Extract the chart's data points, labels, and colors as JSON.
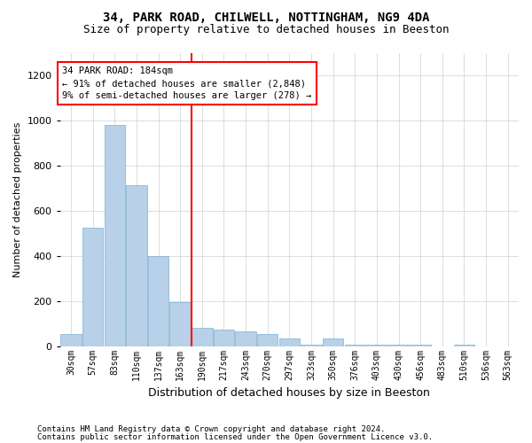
{
  "title": "34, PARK ROAD, CHILWELL, NOTTINGHAM, NG9 4DA",
  "subtitle": "Size of property relative to detached houses in Beeston",
  "xlabel": "Distribution of detached houses by size in Beeston",
  "ylabel": "Number of detached properties",
  "footer_line1": "Contains HM Land Registry data © Crown copyright and database right 2024.",
  "footer_line2": "Contains public sector information licensed under the Open Government Licence v3.0.",
  "annotation_line1": "34 PARK ROAD: 184sqm",
  "annotation_line2": "← 91% of detached houses are smaller (2,848)",
  "annotation_line3": "9% of semi-detached houses are larger (278) →",
  "vline_x": 6,
  "bar_color": "#b8d0e8",
  "bar_edgecolor": "#7aafd4",
  "vline_color": "red",
  "background_color": "#ffffff",
  "categories": [
    "30sqm",
    "57sqm",
    "83sqm",
    "110sqm",
    "137sqm",
    "163sqm",
    "190sqm",
    "217sqm",
    "243sqm",
    "270sqm",
    "297sqm",
    "323sqm",
    "350sqm",
    "376sqm",
    "403sqm",
    "430sqm",
    "456sqm",
    "483sqm",
    "510sqm",
    "536sqm",
    "563sqm"
  ],
  "values": [
    55,
    525,
    980,
    715,
    400,
    195,
    80,
    75,
    65,
    55,
    35,
    5,
    35,
    5,
    5,
    5,
    5,
    0,
    5,
    0,
    0
  ],
  "ylim": [
    0,
    1300
  ],
  "yticks": [
    0,
    200,
    400,
    600,
    800,
    1000,
    1200
  ],
  "grid_color": "#d0d0d0",
  "title_fontsize": 10,
  "subtitle_fontsize": 9,
  "annotation_fontsize": 7.5,
  "ylabel_fontsize": 8,
  "xlabel_fontsize": 9,
  "tick_fontsize": 7,
  "footer_fontsize": 6.5
}
